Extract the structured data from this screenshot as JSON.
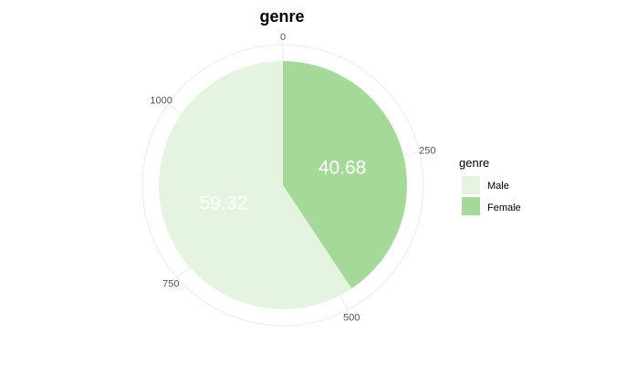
{
  "chart_data": {
    "type": "pie",
    "title": "genre",
    "total": 1180,
    "angle_ticks": [
      0,
      250,
      500,
      750,
      1000
    ],
    "slices": [
      {
        "name": "Female",
        "value": 480,
        "label": "40.68",
        "color": "#a4d99a"
      },
      {
        "name": "Male",
        "value": 700,
        "label": "59.32",
        "color": "#e5f4e0"
      }
    ],
    "legend": {
      "title": "genre",
      "placement": "right",
      "entries": [
        {
          "name": "Male",
          "color": "#e5f4e0"
        },
        {
          "name": "Female",
          "color": "#a4d99a"
        }
      ]
    },
    "colors": {
      "grid": "#ebebeb",
      "tick_text": "#555555"
    }
  }
}
